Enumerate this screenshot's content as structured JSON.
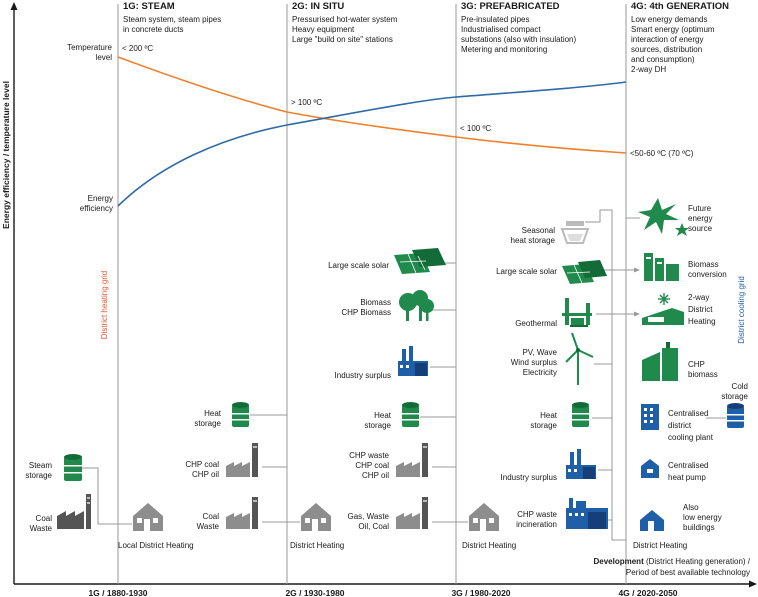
{
  "axes": {
    "y_label": "Energy efficiency / temperature level",
    "x_label_bold": "Development",
    "x_label_rest": " (District Heating generation) /",
    "x_label_line2": "Period of best available technology",
    "ticks": [
      "1G / 1880-1930",
      "2G / 1930-1980",
      "3G / 1980-2020",
      "4G / 2020-2050"
    ]
  },
  "generations": [
    {
      "title": "1G: STEAM",
      "desc": [
        "Steam system, steam pipes",
        "in concrete ducts"
      ]
    },
    {
      "title": "2G: IN SITU",
      "desc": [
        "Pressurised hot-water system",
        "Heavy equipment",
        "Large \"build on site\" stations"
      ]
    },
    {
      "title": "3G: PREFABRICATED",
      "desc": [
        "Pre-insulated pipes",
        "Industrialised compact",
        "substations (also with insulation)",
        "Metering and monitoring"
      ]
    },
    {
      "title": "4G: 4th GENERATION",
      "desc": [
        "Low energy demands",
        "Smart energy (optimum",
        "interaction of energy",
        "sources, distribution",
        "and consumption)",
        "2-way DH"
      ]
    }
  ],
  "curves": {
    "temperature_label": [
      "Temperature",
      "level"
    ],
    "efficiency_label": [
      "Energy",
      "efficiency"
    ],
    "temperature_color": "#f07f2a",
    "efficiency_color": "#2f6aa8",
    "temp_points": [
      "< 200 ºC",
      "> 100 ºC",
      "< 100 ºC",
      "<50-60 ºC (70 ºC)"
    ]
  },
  "grids": {
    "heating": "District heating grid",
    "heating_color": "#e8542a",
    "cooling": "District cooling grid",
    "cooling_color": "#1f5fa8"
  },
  "g1": {
    "sources": [
      [
        "Steam",
        "storage"
      ],
      [
        "Coal",
        "Waste"
      ]
    ],
    "sink": "Local District Heating"
  },
  "g2": {
    "sources": [
      [
        "Heat",
        "storage"
      ],
      [
        "CHP coal",
        "CHP oil"
      ],
      [
        "Coal",
        "Waste"
      ]
    ],
    "sink": "District Heating"
  },
  "g3": {
    "sources": [
      [
        "Large scale solar"
      ],
      [
        "Biomass",
        "CHP Biomass"
      ],
      [
        "Industry surplus"
      ],
      [
        "Heat",
        "storage"
      ],
      [
        "CHP waste",
        "CHP coal",
        "CHP oil"
      ],
      [
        "Gas, Waste",
        "Oil, Coal"
      ]
    ],
    "sink": "District Heating"
  },
  "g4_left": {
    "sources": [
      [
        "Seasonal",
        "heat storage"
      ],
      [
        "Large scale solar"
      ],
      [
        "Geothermal"
      ],
      [
        "PV, Wave",
        "Wind surplus",
        "Electricity"
      ],
      [
        "Heat",
        "storage"
      ],
      [
        "Industry surplus"
      ],
      [
        "CHP waste",
        "incineration"
      ]
    ],
    "sink": "District Heating"
  },
  "g4_right": [
    [
      "Future",
      "energy",
      "source"
    ],
    [
      "Biomass",
      "conversion"
    ],
    [
      "2-way",
      "District",
      "Heating"
    ],
    [
      "CHP",
      "biomass"
    ],
    [
      "Centralised",
      "district",
      "cooling plant"
    ],
    [
      "Centralised",
      "heat pump"
    ],
    [
      "Also",
      "low energy",
      "buildings"
    ]
  ],
  "cold_storage": [
    "Cold",
    "storage"
  ]
}
